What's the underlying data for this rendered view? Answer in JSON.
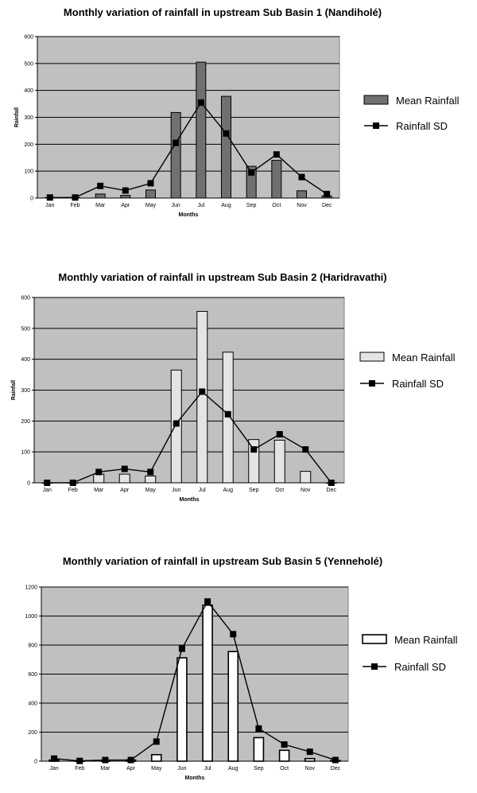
{
  "chart_data": [
    {
      "type": "bar",
      "title": "Monthly variation of rainfall in upstream Sub Basin 1 (Nandiholé)",
      "xlabel": "Months",
      "ylabel": "Rainfall",
      "ylim": [
        0,
        600
      ],
      "yticks": [
        0,
        100,
        200,
        300,
        400,
        500,
        600
      ],
      "grid": true,
      "legend": "right",
      "categories": [
        "Jan",
        "Feb",
        "Mar",
        "Apr",
        "May",
        "Jun",
        "Jul",
        "Aug",
        "Sep",
        "Oct",
        "Nov",
        "Dec"
      ],
      "series": [
        {
          "name": "Mean Rainfall",
          "kind": "bar",
          "color": "#707070",
          "values": [
            2,
            2,
            15,
            10,
            30,
            318,
            505,
            378,
            118,
            140,
            27,
            8
          ]
        },
        {
          "name": "Rainfall SD",
          "kind": "line",
          "color": "#000000",
          "values": [
            2,
            2,
            45,
            28,
            55,
            205,
            355,
            240,
            95,
            162,
            78,
            15
          ]
        }
      ]
    },
    {
      "type": "bar",
      "title": "Monthly variation of rainfall in upstream Sub Basin 2 (Haridravathi)",
      "xlabel": "Months",
      "ylabel": "Rainfall",
      "ylim": [
        0,
        600
      ],
      "yticks": [
        0,
        100,
        200,
        300,
        400,
        500,
        600
      ],
      "grid": true,
      "legend": "right",
      "categories": [
        "Jan",
        "Feb",
        "Mar",
        "Apr",
        "May",
        "Jun",
        "Jul",
        "Aug",
        "Sep",
        "Oct",
        "Nov",
        "Dec"
      ],
      "series": [
        {
          "name": "Mean Rainfall",
          "kind": "bar",
          "color": "#e4e4e4",
          "values": [
            0,
            0,
            28,
            28,
            22,
            365,
            555,
            423,
            140,
            138,
            37,
            0
          ]
        },
        {
          "name": "Rainfall SD",
          "kind": "line",
          "color": "#000000",
          "values": [
            0,
            0,
            35,
            45,
            35,
            192,
            295,
            222,
            108,
            157,
            108,
            0
          ]
        }
      ]
    },
    {
      "type": "bar",
      "title": "Monthly variation of rainfall in upstream Sub Basin 5 (Yenneholé)",
      "xlabel": "Months",
      "ylabel": "",
      "ylim": [
        0,
        1200
      ],
      "yticks": [
        0,
        200,
        400,
        600,
        800,
        1000,
        1200
      ],
      "grid": true,
      "legend": "right",
      "categories": [
        "Jan",
        "Feb",
        "Mar",
        "Apr",
        "May",
        "Jun",
        "Jul",
        "Aug",
        "Sep",
        "Oct",
        "Nov",
        "Dec"
      ],
      "series": [
        {
          "name": "Mean Rainfall",
          "kind": "bar",
          "color": "#ffffff",
          "values": [
            8,
            2,
            5,
            8,
            45,
            712,
            1075,
            755,
            162,
            75,
            18,
            5
          ]
        },
        {
          "name": "Rainfall SD",
          "kind": "line",
          "color": "#000000",
          "values": [
            18,
            2,
            8,
            8,
            135,
            775,
            1100,
            875,
            225,
            115,
            65,
            8
          ]
        }
      ]
    }
  ]
}
